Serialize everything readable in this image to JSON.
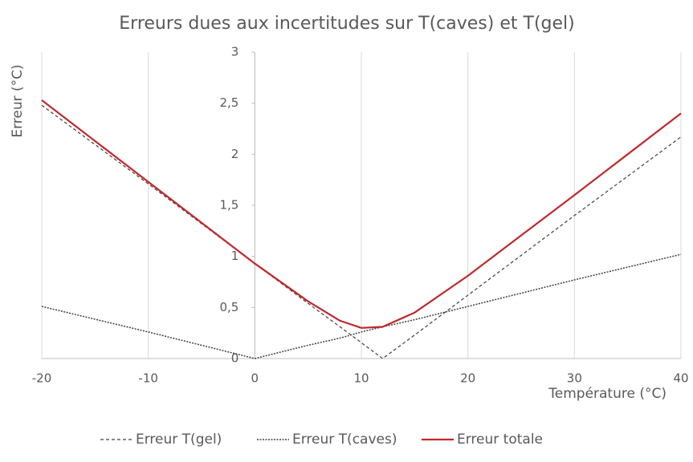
{
  "chart_data": {
    "type": "line",
    "title": "Erreurs dues aux incertitudes sur T(caves) et T(gel)",
    "x_label": "Température (°C)",
    "y_label": "Erreur (°C)",
    "x": [
      -20,
      -10,
      0,
      5,
      8,
      10,
      12,
      15,
      20,
      30,
      40
    ],
    "series": [
      {
        "name": "Erreur T(gel)",
        "color": "#404040",
        "style": "dashed",
        "values": [
          2.48,
          1.71,
          0.93,
          0.54,
          0.31,
          0.155,
          0,
          0.23,
          0.62,
          1.4,
          2.17
        ]
      },
      {
        "name": "Erreur T(caves)",
        "color": "#404040",
        "style": "dotted",
        "values": [
          0.51,
          0.26,
          0,
          0.13,
          0.2,
          0.26,
          0.31,
          0.38,
          0.51,
          0.77,
          1.02
        ]
      },
      {
        "name": "Erreur totale",
        "color": "#c0282d",
        "style": "solid",
        "values": [
          2.53,
          1.73,
          0.93,
          0.56,
          0.37,
          0.3,
          0.31,
          0.45,
          0.81,
          1.6,
          2.4
        ]
      }
    ],
    "xlim": [
      -20,
      40
    ],
    "xticks": [
      -20,
      -10,
      0,
      10,
      20,
      30,
      40
    ],
    "ylim": [
      0,
      3
    ],
    "yticks": [
      0,
      {
        "value": 0.5,
        "label": "0,5"
      },
      1,
      {
        "value": 1.5,
        "label": "1,5"
      },
      2,
      {
        "value": 2.5,
        "label": "2,5"
      },
      3
    ],
    "grid": true,
    "legend": "bottom"
  }
}
